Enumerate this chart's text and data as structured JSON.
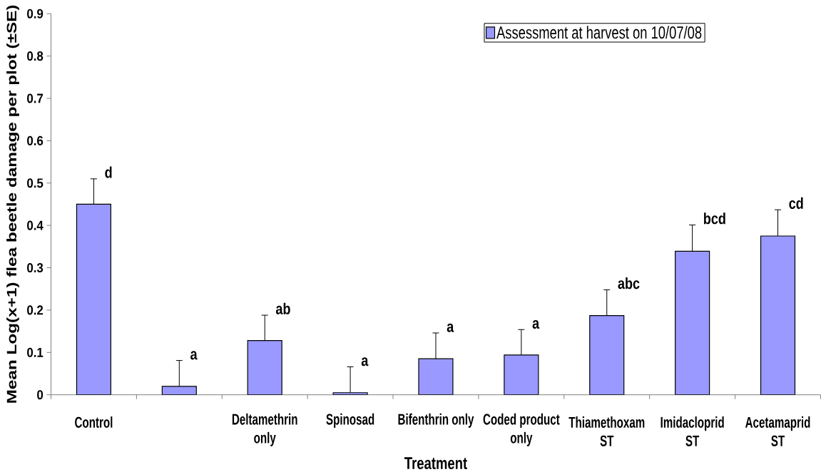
{
  "chart_data": {
    "type": "bar",
    "categories": [
      "Control",
      null,
      "Deltamethrin only",
      "Spinosad",
      "Bifenthrin only",
      "Coded product only",
      "Thiamethoxam ST",
      "Imidacloprid ST",
      "Acetamaprid ST"
    ],
    "series": [
      {
        "name": "Assessment at harvest on 10/07/08",
        "color": "#9999ff",
        "values": [
          0.45,
          0.02,
          0.128,
          0.005,
          0.085,
          0.094,
          0.187,
          0.339,
          0.375
        ],
        "errors": [
          [
            0.45,
            0.51
          ],
          [
            0.02,
            0.081
          ],
          [
            0.128,
            0.188
          ],
          [
            0.005,
            0.066
          ],
          [
            0.085,
            0.146
          ],
          [
            0.094,
            0.154
          ],
          [
            0.187,
            0.248
          ],
          [
            0.339,
            0.401
          ],
          [
            0.375,
            0.437
          ]
        ]
      }
    ],
    "xlabel": "Treatment",
    "ylabel": "Mean Log(x+1) flea beetle damage per plot (±SE)",
    "ylim": [
      0,
      0.9
    ],
    "yticks": [
      0,
      0.1,
      0.2,
      0.3,
      0.4,
      0.5,
      0.6,
      0.7,
      0.8,
      0.9
    ],
    "annotations": [
      "d",
      "a",
      "ab",
      "a",
      "a",
      "a",
      "abc",
      "bcd",
      "cd"
    ],
    "legend": "top right"
  }
}
